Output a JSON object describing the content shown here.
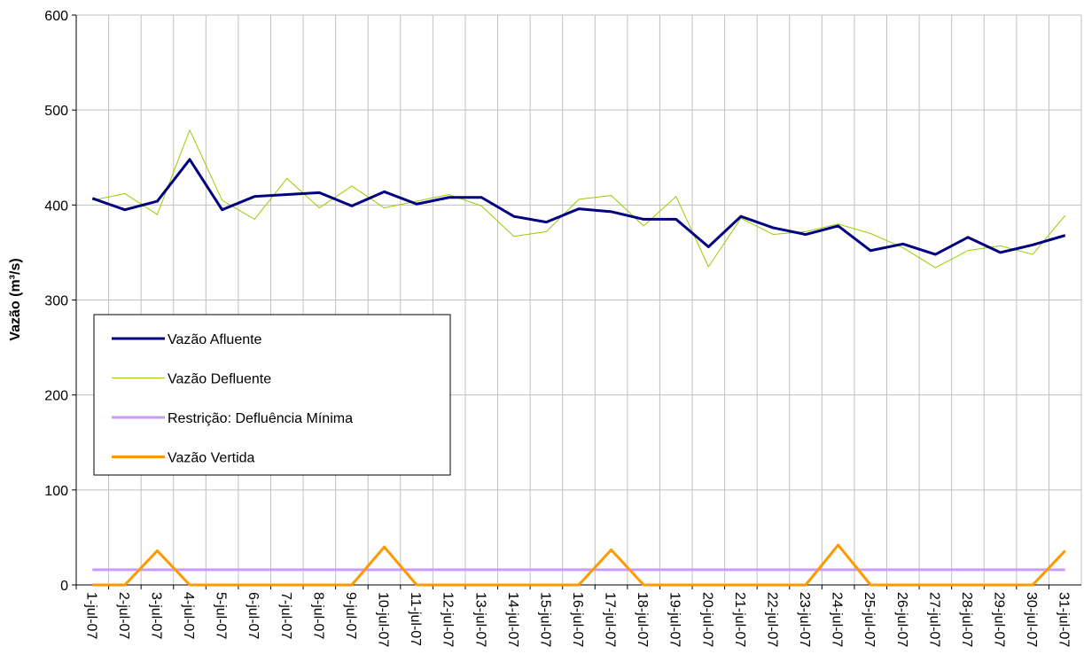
{
  "chart_data": {
    "type": "line",
    "y_label": "Vazão (m³/s)",
    "categories": [
      "1-jul-07",
      "2-jul-07",
      "3-jul-07",
      "4-jul-07",
      "5-jul-07",
      "6-jul-07",
      "7-jul-07",
      "8-jul-07",
      "9-jul-07",
      "10-jul-07",
      "11-jul-07",
      "12-jul-07",
      "13-jul-07",
      "14-jul-07",
      "15-jul-07",
      "16-jul-07",
      "17-jul-07",
      "18-jul-07",
      "19-jul-07",
      "20-jul-07",
      "21-jul-07",
      "22-jul-07",
      "23-jul-07",
      "24-jul-07",
      "25-jul-07",
      "26-jul-07",
      "27-jul-07",
      "28-jul-07",
      "29-jul-07",
      "30-jul-07",
      "31-jul-07"
    ],
    "series": [
      {
        "name": "Vazão Afluente",
        "color": "#000080",
        "values": [
          407,
          395,
          404,
          448,
          395,
          409,
          411,
          413,
          399,
          414,
          401,
          408,
          408,
          388,
          382,
          396,
          393,
          385,
          385,
          356,
          388,
          376,
          369,
          378,
          352,
          359,
          348,
          366,
          350,
          358,
          368
        ]
      },
      {
        "name": "Vazão Defluente",
        "color": "#99cc00",
        "values": [
          405,
          412,
          390,
          479,
          405,
          385,
          428,
          397,
          420,
          397,
          404,
          411,
          399,
          367,
          372,
          406,
          410,
          378,
          409,
          335,
          386,
          369,
          372,
          380,
          370,
          355,
          334,
          352,
          357,
          348,
          389
        ]
      },
      {
        "name": "Restrição: Defluência Mínima",
        "color": "#cc99ff",
        "values": [
          16,
          16,
          16,
          16,
          16,
          16,
          16,
          16,
          16,
          16,
          16,
          16,
          16,
          16,
          16,
          16,
          16,
          16,
          16,
          16,
          16,
          16,
          16,
          16,
          16,
          16,
          16,
          16,
          16,
          16,
          16
        ]
      },
      {
        "name": "Vazão Vertida",
        "color": "#ff9900",
        "values": [
          0,
          0,
          36,
          0,
          0,
          0,
          0,
          0,
          0,
          40,
          0,
          0,
          0,
          0,
          0,
          0,
          37,
          0,
          0,
          0,
          0,
          0,
          0,
          42,
          0,
          0,
          0,
          0,
          0,
          0,
          36
        ]
      }
    ],
    "ylim": [
      0,
      600
    ],
    "yticks": [
      0,
      100,
      200,
      300,
      400,
      500,
      600
    ],
    "grid": true
  }
}
